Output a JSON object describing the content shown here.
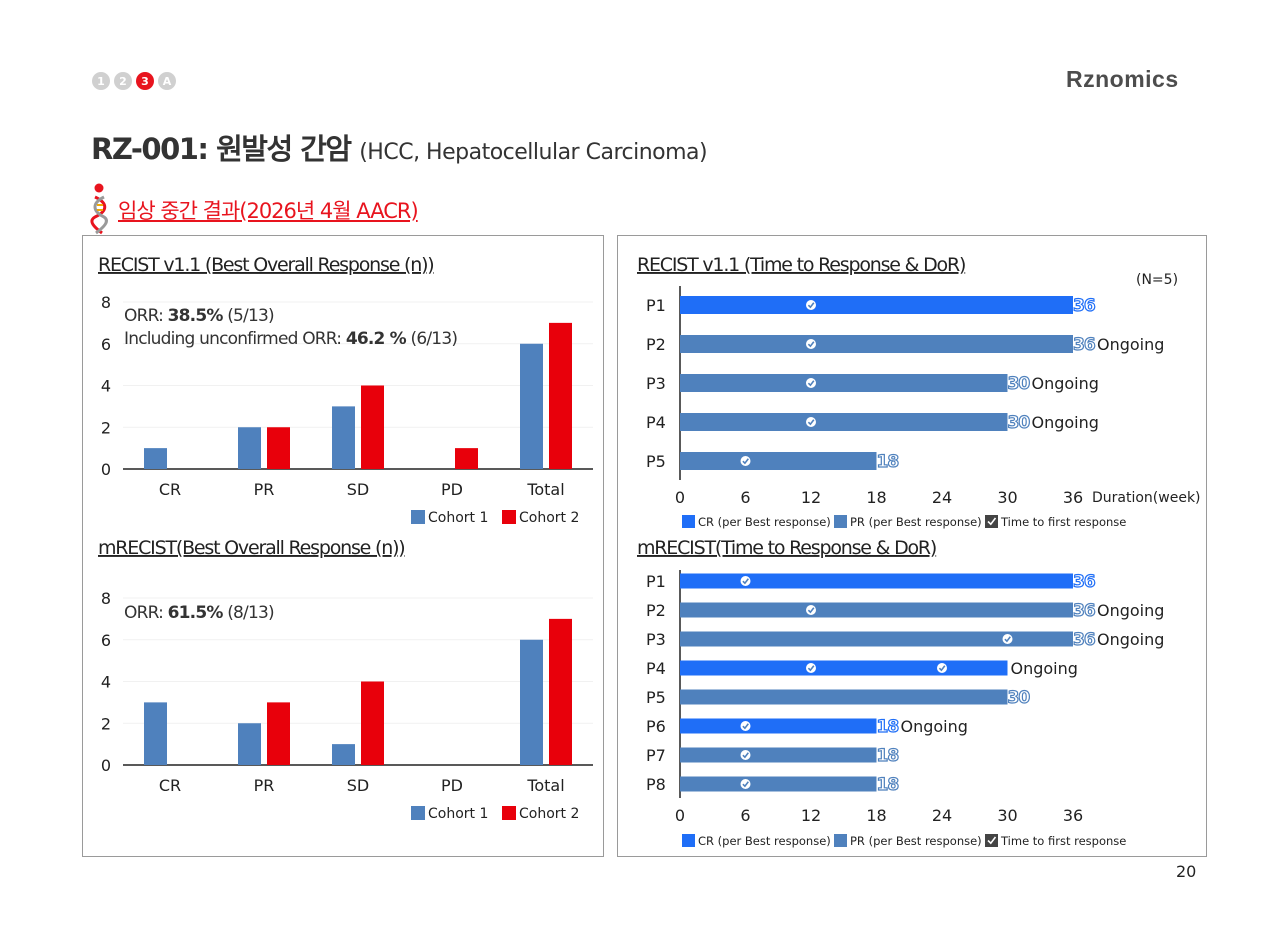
{
  "nav": {
    "items": [
      "1",
      "2",
      "3",
      "A"
    ],
    "active_index": 2
  },
  "logo": {
    "text": "Rznomics"
  },
  "header": {
    "title": "RZ-001: 원발성 간암",
    "subtitle": "(HCC, Hepatocellular Carcinoma)"
  },
  "section": {
    "heading": "임상 중간 결과(2026년 4월 AACR)"
  },
  "colors": {
    "cohort1": "#4f81bd",
    "cohort2": "#e8000b",
    "cr": "#1f6ef7",
    "pr": "#4f81bd",
    "accent": "#e8141e"
  },
  "page": {
    "number": "20"
  },
  "chart_data": [
    {
      "type": "bar",
      "title": "RECIST v1.1 (Best Overall Response (n))",
      "categories": [
        "CR",
        "PR",
        "SD",
        "PD",
        "Total"
      ],
      "series": [
        {
          "name": "Cohort 1",
          "values": [
            1,
            2,
            3,
            0,
            6
          ]
        },
        {
          "name": "Cohort 2",
          "values": [
            0,
            2,
            4,
            1,
            7
          ]
        }
      ],
      "ylim": [
        0,
        8
      ],
      "yticks": [
        0,
        2,
        4,
        6,
        8
      ],
      "annotations": [
        {
          "prefix": "ORR: ",
          "bold": "38.5%",
          "suffix": " (5/13)"
        },
        {
          "prefix": "Including unconfirmed ORR: ",
          "bold": "46.2 %",
          "suffix": " (6/13)"
        }
      ],
      "legend": "bottom-right",
      "grid": false
    },
    {
      "type": "bar",
      "title": "mRECIST(Best Overall Response (n))",
      "categories": [
        "CR",
        "PR",
        "SD",
        "PD",
        "Total"
      ],
      "series": [
        {
          "name": "Cohort 1",
          "values": [
            3,
            2,
            1,
            0,
            6
          ]
        },
        {
          "name": "Cohort 2",
          "values": [
            0,
            3,
            4,
            0,
            7
          ]
        }
      ],
      "ylim": [
        0,
        8
      ],
      "yticks": [
        0,
        2,
        4,
        6,
        8
      ],
      "annotations": [
        {
          "prefix": "ORR: ",
          "bold": "61.5%",
          "suffix": " (8/13)"
        }
      ],
      "legend": "bottom-right",
      "grid": false
    },
    {
      "type": "bar",
      "orientation": "horizontal",
      "title": "RECIST v1.1 (Time to Response & DoR)",
      "note": "(N=5)",
      "xlabel": "Duration(week)",
      "xlim": [
        0,
        36
      ],
      "xticks": [
        0,
        6,
        12,
        18,
        24,
        30,
        36
      ],
      "patients": [
        {
          "label": "P1",
          "duration": 36,
          "response": "CR",
          "first_response": [
            12
          ],
          "status": ""
        },
        {
          "label": "P2",
          "duration": 36,
          "response": "PR",
          "first_response": [
            12
          ],
          "status": "Ongoing"
        },
        {
          "label": "P3",
          "duration": 30,
          "response": "PR",
          "first_response": [
            12
          ],
          "status": "Ongoing"
        },
        {
          "label": "P4",
          "duration": 30,
          "response": "PR",
          "first_response": [
            12
          ],
          "status": "Ongoing"
        },
        {
          "label": "P5",
          "duration": 18,
          "response": "PR",
          "first_response": [
            6
          ],
          "status": ""
        }
      ],
      "legend": [
        "CR (per Best response)",
        "PR (per Best response)",
        "Time to first response"
      ]
    },
    {
      "type": "bar",
      "orientation": "horizontal",
      "title": "mRECIST(Time to Response & DoR)",
      "xlim": [
        0,
        36
      ],
      "xticks": [
        0,
        6,
        12,
        18,
        24,
        30,
        36
      ],
      "patients": [
        {
          "label": "P1",
          "duration": 36,
          "response": "CR",
          "first_response": [
            6
          ],
          "status": ""
        },
        {
          "label": "P2",
          "duration": 36,
          "response": "PR",
          "first_response": [
            12
          ],
          "status": "Ongoing"
        },
        {
          "label": "P3",
          "duration": 36,
          "response": "PR",
          "first_response": [
            30
          ],
          "status": "Ongoing"
        },
        {
          "label": "P4",
          "duration": 30,
          "response": "CR",
          "first_response": [
            12,
            24
          ],
          "status": "Ongoing",
          "hide_value": true
        },
        {
          "label": "P5",
          "duration": 30,
          "response": "PR",
          "first_response": [],
          "status": ""
        },
        {
          "label": "P6",
          "duration": 18,
          "response": "CR",
          "first_response": [
            6
          ],
          "status": "Ongoing"
        },
        {
          "label": "P7",
          "duration": 18,
          "response": "PR",
          "first_response": [
            6
          ],
          "status": ""
        },
        {
          "label": "P8",
          "duration": 18,
          "response": "PR",
          "first_response": [
            6
          ],
          "status": ""
        }
      ],
      "legend": [
        "CR (per Best response)",
        "PR (per Best response)",
        "Time to first response"
      ]
    }
  ]
}
